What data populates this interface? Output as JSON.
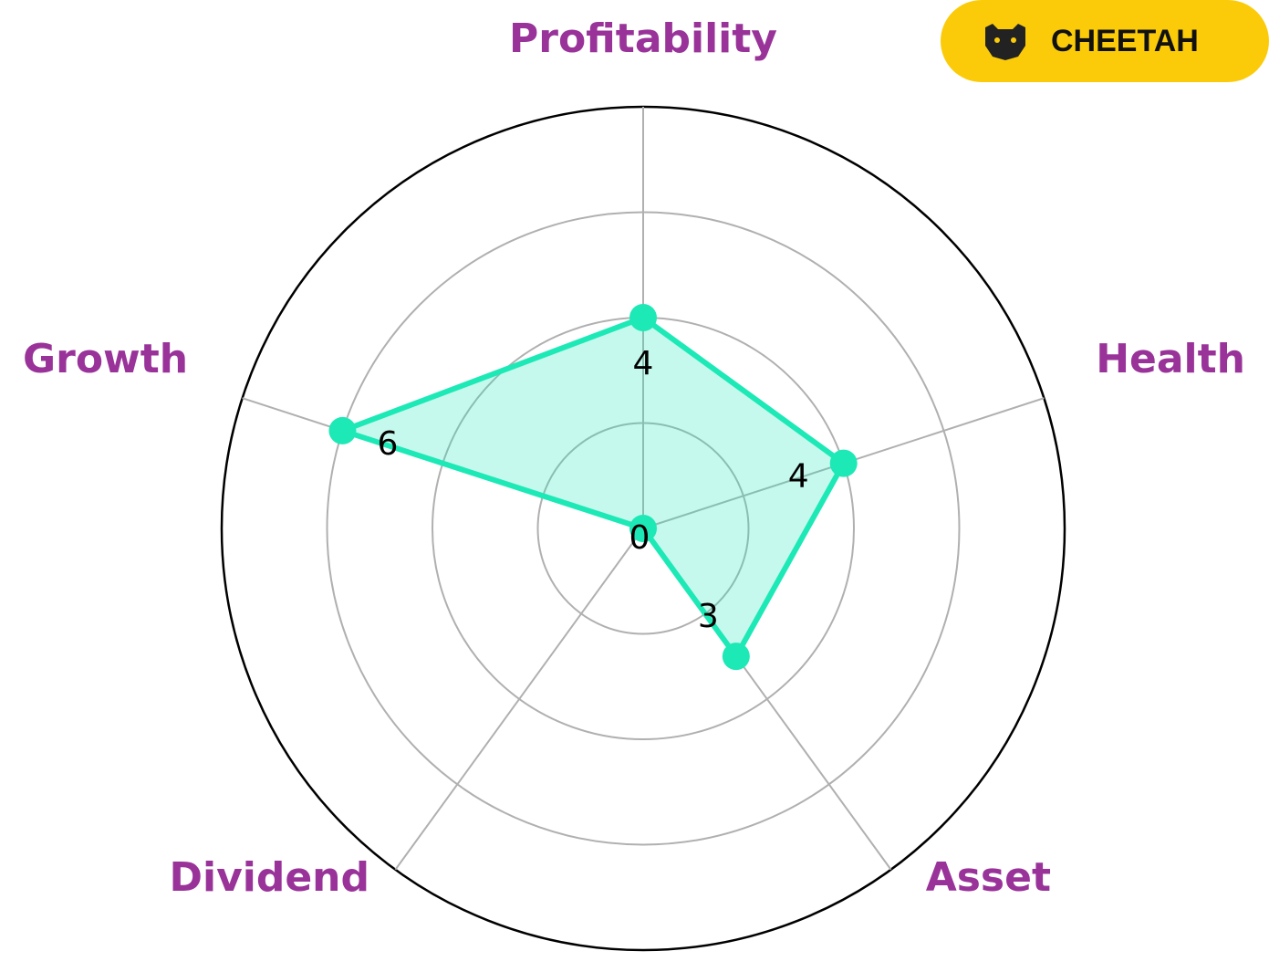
{
  "chart_data": {
    "type": "radar",
    "categories": [
      "Profitability",
      "Health",
      "Asset",
      "Dividend",
      "Growth"
    ],
    "values": [
      4,
      4,
      3,
      0,
      6
    ],
    "color": "#1de9b6",
    "label_color": "#993399",
    "rlim": [
      0,
      8
    ],
    "rticks": [
      2,
      4,
      6,
      8
    ],
    "grid": true
  },
  "badge": {
    "text": "CHEETAH"
  }
}
